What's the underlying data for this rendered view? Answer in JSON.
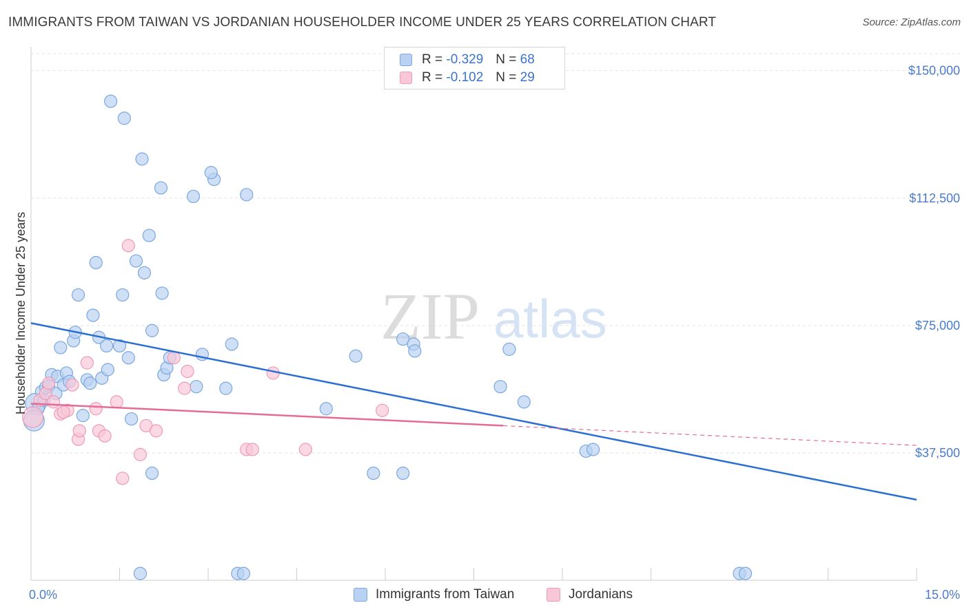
{
  "title": "IMMIGRANTS FROM TAIWAN VS JORDANIAN HOUSEHOLDER INCOME UNDER 25 YEARS CORRELATION CHART",
  "source": "Source: ZipAtlas.com",
  "watermark": {
    "zip": "ZIP",
    "atlas": "atlas"
  },
  "legend": {
    "r_label": "R =",
    "n_label": "N =",
    "rows": [
      {
        "r": "-0.329",
        "n": "68"
      },
      {
        "r": "-0.102",
        "n": "29"
      }
    ]
  },
  "colors": {
    "blue_fill": "#b9d1f2",
    "blue_stroke": "#7aa7e0",
    "blue_line": "#2a6fd1",
    "pink_fill": "#f8c8d8",
    "pink_stroke": "#ee9ab6",
    "pink_line": "#e56b93",
    "grid": "#e3e3e3",
    "tick_text": "#4a7cc9"
  },
  "chart_data": {
    "type": "scatter",
    "title": "IMMIGRANTS FROM TAIWAN VS JORDANIAN HOUSEHOLDER INCOME UNDER 25 YEARS CORRELATION CHART",
    "xlabel": "",
    "ylabel": "Householder Income Under 25 years",
    "xlim": [
      0,
      15
    ],
    "ylim": [
      0,
      155000
    ],
    "y_ticks": [
      37500,
      75000,
      112500,
      150000
    ],
    "y_tick_labels": [
      "$37,500",
      "$75,000",
      "$112,500",
      "$150,000"
    ],
    "x_tick_labels": [
      "0.0%",
      "15.0%"
    ],
    "legend_position": "top-center",
    "series": [
      {
        "name": "Immigrants from Taiwan",
        "color": "#7aa7e0",
        "r": -0.329,
        "n": 68,
        "trend": {
          "x": [
            0,
            15
          ],
          "y": [
            75700,
            23700
          ],
          "style": "solid"
        },
        "points": [
          [
            0.08,
            52000
          ],
          [
            0.12,
            50500
          ],
          [
            0.18,
            55500
          ],
          [
            0.22,
            53000
          ],
          [
            0.25,
            56800
          ],
          [
            0.3,
            57200
          ],
          [
            0.35,
            60500
          ],
          [
            0.42,
            55000
          ],
          [
            0.45,
            60000
          ],
          [
            0.5,
            68500
          ],
          [
            0.55,
            57500
          ],
          [
            0.6,
            61000
          ],
          [
            0.65,
            58500
          ],
          [
            0.72,
            70500
          ],
          [
            0.75,
            73000
          ],
          [
            0.8,
            84000
          ],
          [
            0.88,
            48500
          ],
          [
            0.95,
            59000
          ],
          [
            1.0,
            58000
          ],
          [
            1.05,
            78000
          ],
          [
            1.1,
            93500
          ],
          [
            1.15,
            71500
          ],
          [
            1.2,
            59500
          ],
          [
            1.28,
            69000
          ],
          [
            1.3,
            62000
          ],
          [
            1.35,
            141000
          ],
          [
            1.5,
            69000
          ],
          [
            1.55,
            84000
          ],
          [
            1.58,
            136000
          ],
          [
            1.65,
            65500
          ],
          [
            1.7,
            47500
          ],
          [
            1.78,
            94000
          ],
          [
            1.85,
            2000
          ],
          [
            1.88,
            124000
          ],
          [
            1.92,
            90500
          ],
          [
            2.0,
            101500
          ],
          [
            2.05,
            73500
          ],
          [
            2.05,
            31500
          ],
          [
            2.2,
            115500
          ],
          [
            2.22,
            84500
          ],
          [
            2.25,
            60500
          ],
          [
            2.3,
            62500
          ],
          [
            2.35,
            65500
          ],
          [
            2.75,
            113000
          ],
          [
            2.8,
            57000
          ],
          [
            2.9,
            66500
          ],
          [
            3.1,
            118000
          ],
          [
            3.05,
            120000
          ],
          [
            3.3,
            56500
          ],
          [
            3.4,
            69500
          ],
          [
            3.5,
            2000
          ],
          [
            3.6,
            2000
          ],
          [
            3.65,
            113500
          ],
          [
            5.0,
            50500
          ],
          [
            5.5,
            66000
          ],
          [
            5.8,
            31500
          ],
          [
            6.3,
            71000
          ],
          [
            6.48,
            69500
          ],
          [
            6.5,
            67500
          ],
          [
            6.3,
            31500
          ],
          [
            7.95,
            57000
          ],
          [
            8.1,
            68000
          ],
          [
            8.35,
            52500
          ],
          [
            9.4,
            38000
          ],
          [
            9.52,
            38500
          ],
          [
            12.0,
            2000
          ],
          [
            12.1,
            2000
          ],
          [
            0.05,
            47000
          ]
        ]
      },
      {
        "name": "Jordanians",
        "color": "#ee9ab6",
        "r": -0.102,
        "n": 29,
        "trend": {
          "x": [
            0,
            8.0
          ],
          "y": [
            52000,
            45500
          ],
          "style": "solid",
          "extension": {
            "x": [
              8.0,
              15
            ],
            "y": [
              45500,
              39700
            ],
            "style": "dashed"
          }
        },
        "points": [
          [
            0.03,
            48000
          ],
          [
            0.15,
            53000
          ],
          [
            0.25,
            55000
          ],
          [
            0.3,
            58000
          ],
          [
            0.38,
            52500
          ],
          [
            0.5,
            49000
          ],
          [
            0.62,
            50000
          ],
          [
            0.8,
            41500
          ],
          [
            0.82,
            44000
          ],
          [
            0.95,
            64000
          ],
          [
            1.1,
            50500
          ],
          [
            1.15,
            44000
          ],
          [
            1.25,
            42500
          ],
          [
            1.45,
            52500
          ],
          [
            1.55,
            30000
          ],
          [
            1.65,
            98500
          ],
          [
            1.85,
            37000
          ],
          [
            1.95,
            45500
          ],
          [
            2.12,
            44000
          ],
          [
            2.42,
            65500
          ],
          [
            2.6,
            56500
          ],
          [
            2.65,
            61500
          ],
          [
            3.65,
            38500
          ],
          [
            3.75,
            38500
          ],
          [
            4.1,
            61000
          ],
          [
            4.65,
            38500
          ],
          [
            5.95,
            50000
          ],
          [
            0.55,
            49500
          ],
          [
            0.7,
            57500
          ]
        ]
      }
    ]
  },
  "bottom_legend": [
    {
      "label": "Immigrants from Taiwan"
    },
    {
      "label": "Jordanians"
    }
  ]
}
